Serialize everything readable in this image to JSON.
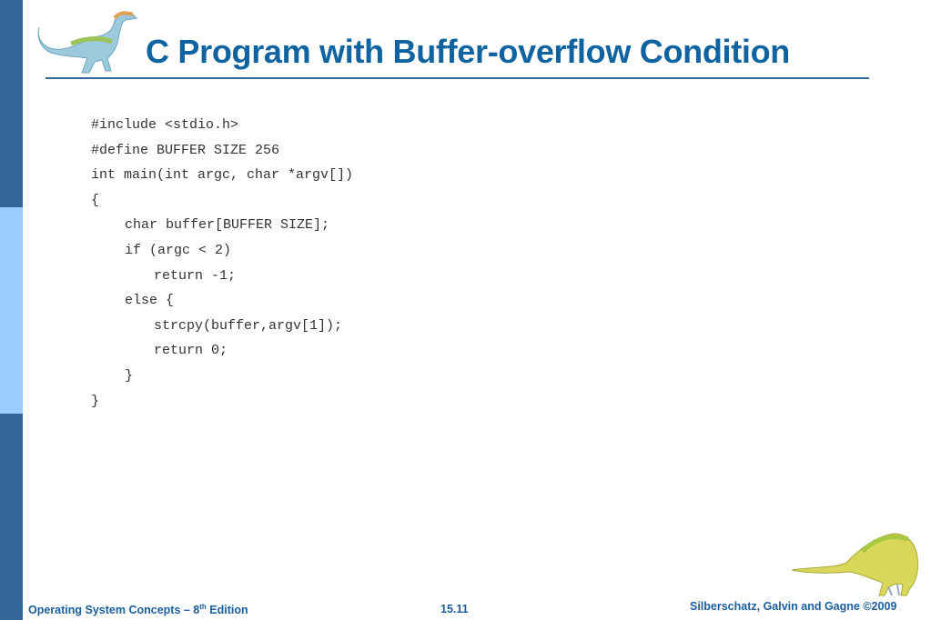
{
  "slide": {
    "title": "C Program with Buffer-overflow Condition",
    "code_lines": [
      {
        "indent": 0,
        "text": "#include <stdio.h>"
      },
      {
        "indent": 0,
        "text": "#define BUFFER SIZE 256"
      },
      {
        "indent": 0,
        "text": "int main(int argc, char *argv[])"
      },
      {
        "indent": 0,
        "text": "{"
      },
      {
        "indent": 1,
        "text": "char buffer[BUFFER SIZE];"
      },
      {
        "indent": 1,
        "text": "if (argc < 2)"
      },
      {
        "indent": 2,
        "text": "return -1;"
      },
      {
        "indent": 1,
        "text": "else {"
      },
      {
        "indent": 2,
        "text": "strcpy(buffer,argv[1]);"
      },
      {
        "indent": 2,
        "text": "return 0;"
      },
      {
        "indent": 1,
        "text": "}"
      },
      {
        "indent": 0,
        "text": "}"
      }
    ]
  },
  "footer": {
    "left_prefix": "Operating System Concepts – 8",
    "left_sup": "th",
    "left_suffix": " Edition",
    "center": "15.11",
    "right": "Silberschatz, Galvin and Gagne ©2009"
  },
  "colors": {
    "accent": "#336699",
    "light_accent": "#99ccff",
    "title": "#0f63a0"
  },
  "icons": [
    "dinosaur-logo-top",
    "dinosaur-logo-bottom"
  ]
}
